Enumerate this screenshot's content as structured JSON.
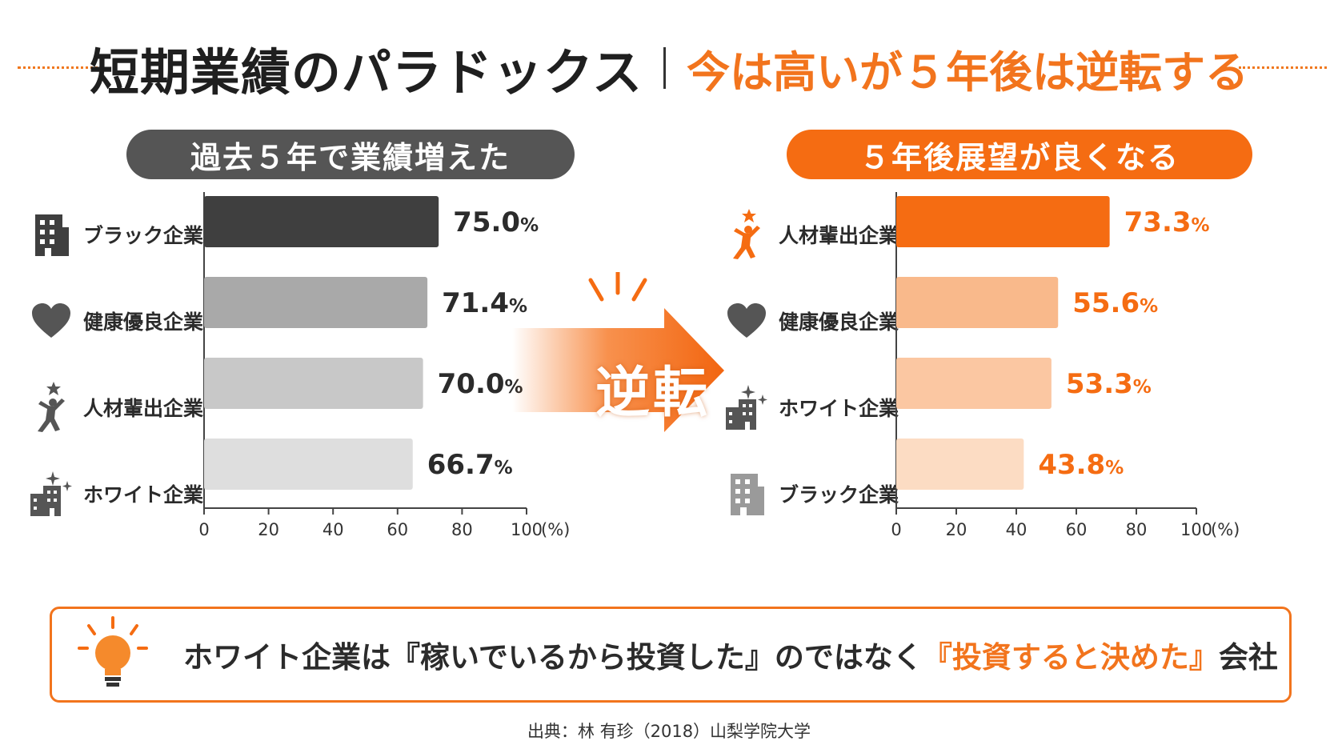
{
  "header": {
    "title": "短期業績のパラドックス",
    "subtitle": "今は高いが５年後は逆転する"
  },
  "colors": {
    "accent": "#f56c12",
    "dark": "#3f3f3f",
    "gray_header": "#555555"
  },
  "left_panel": {
    "heading": "過去５年で業績増えた",
    "rows": [
      {
        "label": "ブラック企業",
        "icon": "building-icon",
        "value_text": "75.0",
        "color": "#3f3f3f"
      },
      {
        "label": "健康優良企業",
        "icon": "heart-icon",
        "value_text": "71.4",
        "color": "#a9a9a9"
      },
      {
        "label": "人材輩出企業",
        "icon": "star-person-icon",
        "value_text": "70.0",
        "color": "#c8c8c8"
      },
      {
        "label": "ホワイト企業",
        "icon": "sparkle-building-icon",
        "value_text": "66.7",
        "color": "#dedede"
      }
    ]
  },
  "right_panel": {
    "heading": "５年後展望が良くなる",
    "rows": [
      {
        "label": "人材輩出企業",
        "icon": "star-person-icon",
        "value_text": "73.3",
        "color": "#f56c12"
      },
      {
        "label": "健康優良企業",
        "icon": "heart-icon",
        "value_text": "55.6",
        "color": "#f9b98b"
      },
      {
        "label": "ホワイト企業",
        "icon": "sparkle-building-icon",
        "value_text": "53.3",
        "color": "#fbc7a2"
      },
      {
        "label": "ブラック企業",
        "icon": "building-icon",
        "value_text": "43.8",
        "color": "#fcdcc3"
      }
    ]
  },
  "percent_sign": "%",
  "axis_unit": "(%)",
  "arrow_label": "逆転",
  "note": {
    "prefix": "ホワイト企業は『稼いでいるから投資した』のではなく",
    "highlight": "『投資すると決めた』",
    "suffix": "会社"
  },
  "source": "出典：林 有珍（2018）山梨学院大学",
  "chart_data": [
    {
      "type": "bar",
      "orientation": "horizontal",
      "title": "過去５年で業績増えた",
      "categories": [
        "ブラック企業",
        "健康優良企業",
        "人材輩出企業",
        "ホワイト企業"
      ],
      "values": [
        75.0,
        71.4,
        70.0,
        66.7
      ],
      "xlim": [
        0,
        100
      ],
      "xticks": [
        0,
        20,
        40,
        60,
        80,
        100
      ],
      "xlabel": "(%)",
      "grid": false,
      "data_labels": [
        "75.0%",
        "71.4%",
        "70.0%",
        "66.7%"
      ]
    },
    {
      "type": "bar",
      "orientation": "horizontal",
      "title": "５年後展望が良くなる",
      "categories": [
        "人材輩出企業",
        "健康優良企業",
        "ホワイト企業",
        "ブラック企業"
      ],
      "values": [
        73.3,
        55.6,
        53.3,
        43.8
      ],
      "xlim": [
        0,
        100
      ],
      "xticks": [
        0,
        20,
        40,
        60,
        80,
        100
      ],
      "xlabel": "(%)",
      "grid": false,
      "data_labels": [
        "73.3%",
        "55.6%",
        "53.3%",
        "43.8%"
      ]
    }
  ]
}
